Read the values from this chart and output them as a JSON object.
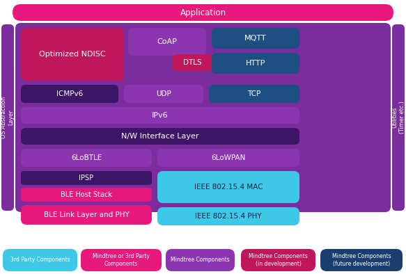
{
  "bg_color": "#f5f5f5",
  "colors": {
    "pink": "#e8197c",
    "hot_pink": "#e8197c",
    "deep_pink": "#c0175a",
    "purple_bg": "#7b2d9e",
    "medium_purple": "#8b35b0",
    "dark_purple": "#4a1a7a",
    "darker_purple": "#3d1566",
    "dark_blue": "#1e4f82",
    "darker_blue": "#1a3f6f",
    "light_cyan": "#3ec8e8",
    "cyan_block": "#3ec8e8",
    "sidebar_purple": "#7b2d9e",
    "dtls_red": "#c0175a"
  },
  "legend": [
    {
      "label": "3rd Party Components",
      "color": "#3ec8e8"
    },
    {
      "label": "Mindtree or 3rd Party\nComponents",
      "color": "#e8197c"
    },
    {
      "label": "Mindtree Components",
      "color": "#8b35b0"
    },
    {
      "label": "Mindtree Components\n(in development)",
      "color": "#c0175a"
    },
    {
      "label": "Mindtree Components\n(future development)",
      "color": "#1e4f82"
    }
  ]
}
